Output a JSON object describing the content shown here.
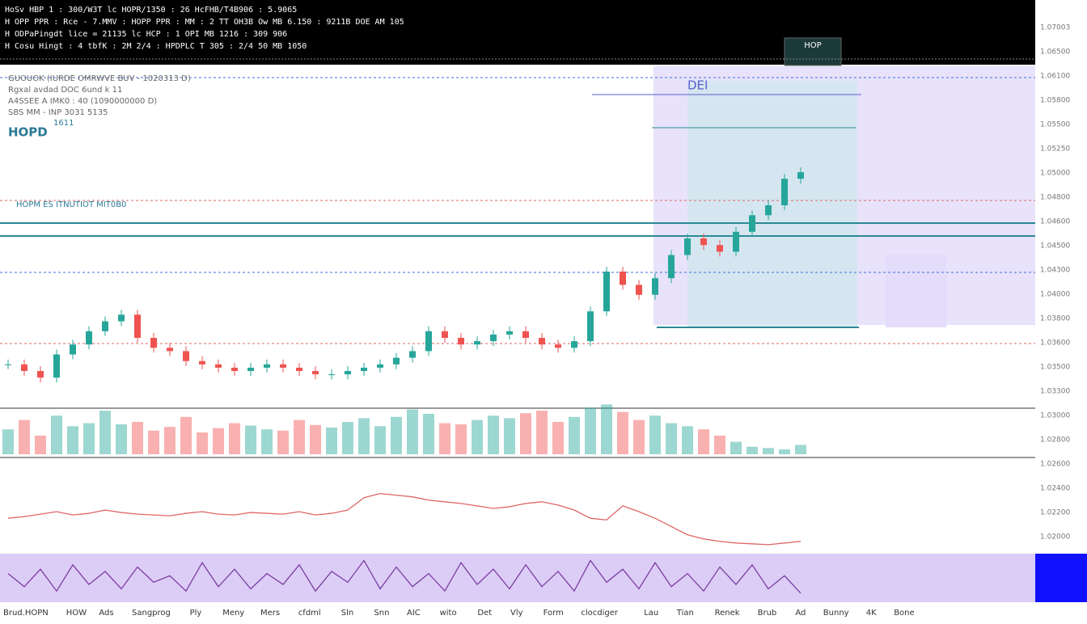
{
  "header": {
    "lines": [
      "HoSv HBP 1 : 300/W3T lc HOPR/1350 : 26 HcFHB/T4B906 : 5.9065",
      "H OPP PPR : Rce - 7.MMV : HOPP PPR : MM : 2 TT OH3B Ow MB 6.150 : 9211B DOE AM 105",
      "H ODPaPingdt lice = 21135 lc HCP : 1 OPI MB 1216 : 309 906",
      "H Cosu Hingt : 4 tbfK : 2M 2/4 : HPDPLC T 305 : 2/4 50 MB 1050"
    ],
    "button": "HOP"
  },
  "legend": {
    "lines": [
      "GUOUOK (IURDE OMRWVE BUV - 1020313 D)",
      "Rgxal avdad DOC 6und k 11",
      "A4SSEE A IMK0 : 40 (1090000000 D)",
      "SBS MM - INP 3031 5135"
    ],
    "symbol": "HOPD",
    "sub": "1611",
    "tag": "HOPM ES ITNUTIOT MIT0B0",
    "box_label": "DEI"
  },
  "axis_labels": [
    "1.07003",
    "1.06500",
    "1.06100",
    "1.05800",
    "1.05500",
    "1.05250",
    "1.05000",
    "1.04800",
    "1.04600",
    "1.04500",
    "1.04300",
    "1.04000",
    "1.03800",
    "1.03600",
    "1.03500",
    "1.03300",
    "1.03000",
    "1.02800",
    "1.02600",
    "1.02400",
    "1.02200",
    "1.02000"
  ],
  "toolbar": [
    "Brud.HOPN",
    "HOW",
    "Ads",
    "Sangprog",
    "Ply",
    "Meny",
    "Mers",
    "cfdml",
    "Sln",
    "Snn",
    "AIC",
    "wito",
    "Det",
    "Vly",
    "Form",
    "clocdiger",
    "Lau",
    "Tian",
    "Renek",
    "Brub",
    "Ad",
    "Bunny",
    "4K",
    "Bone"
  ],
  "chart_data": {
    "type": "candlestick",
    "ylim": [
      0,
      100
    ],
    "values": [
      12,
      10,
      8,
      15,
      18,
      22,
      25,
      27,
      20,
      17,
      16,
      13,
      12,
      11,
      10,
      11,
      12,
      11,
      10,
      9,
      9,
      10,
      11,
      12,
      14,
      16,
      22,
      20,
      18,
      19,
      21,
      22,
      20,
      18,
      17,
      19,
      28,
      40,
      36,
      33,
      38,
      45,
      50,
      48,
      46,
      52,
      57,
      60,
      68,
      70
    ],
    "up_color": "#26a69a",
    "down_color": "#ef5350",
    "volume": [
      40,
      55,
      30,
      62,
      45,
      50,
      70,
      48,
      52,
      38,
      44,
      60,
      35,
      42,
      50,
      46,
      40,
      38,
      55,
      47,
      43,
      52,
      58,
      45,
      60,
      72,
      65,
      50,
      48,
      55,
      62,
      58,
      66,
      70,
      52,
      60,
      75,
      80,
      68,
      55,
      62,
      50,
      45,
      40,
      30,
      20,
      12,
      10,
      8,
      15
    ],
    "volume_ylim": [
      0,
      100
    ],
    "indicator": [
      40,
      42,
      45,
      48,
      44,
      46,
      50,
      47,
      45,
      44,
      43,
      46,
      48,
      45,
      44,
      47,
      46,
      45,
      48,
      44,
      46,
      50,
      65,
      70,
      68,
      66,
      62,
      60,
      58,
      55,
      52,
      54,
      58,
      60,
      56,
      50,
      40,
      38,
      55,
      48,
      40,
      30,
      20,
      15,
      12,
      10,
      9,
      8,
      10,
      12
    ],
    "indicator_ylim": [
      0,
      100
    ],
    "oscillator": [
      60,
      30,
      70,
      20,
      80,
      35,
      65,
      25,
      75,
      40,
      55,
      20,
      85,
      30,
      70,
      25,
      60,
      35,
      80,
      20,
      65,
      40,
      90,
      25,
      75,
      30,
      60,
      20,
      85,
      35,
      70,
      25,
      80,
      30,
      65,
      20,
      90,
      40,
      70,
      25,
      85,
      30,
      60,
      20,
      75,
      35,
      80,
      25,
      55,
      15
    ],
    "oscillator_ylim": [
      0,
      100
    ],
    "indicator_color": "#e06666",
    "oscillator_color": "#7b3fa0"
  }
}
